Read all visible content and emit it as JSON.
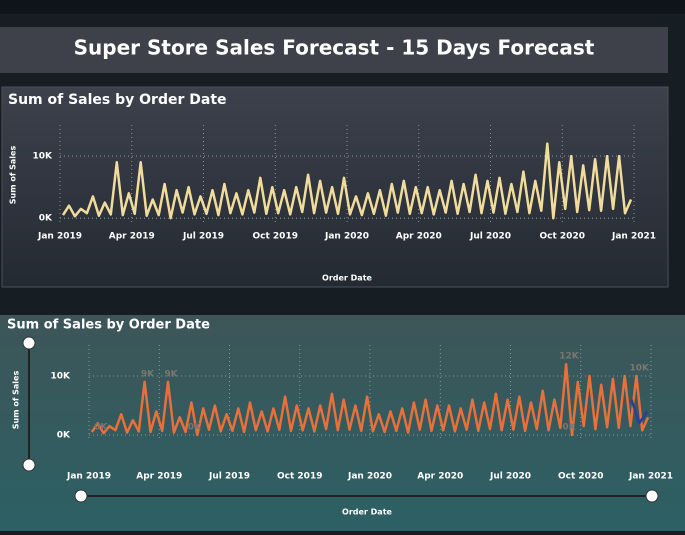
{
  "header": {
    "title": "Super Store Sales Forecast - 15 Days Forecast"
  },
  "chart_data": [
    {
      "type": "line",
      "title": "Sum of Sales by Order Date",
      "x_label": "Order Date",
      "y_label": "Sum of Sales",
      "x": [
        "Jan 2019",
        "Jan 2019",
        "Jan 2019",
        "Jan 2019",
        "Feb 2019",
        "Feb 2019",
        "Feb 2019",
        "Feb 2019",
        "Mar 2019",
        "Mar 2019",
        "Mar 2019",
        "Mar 2019",
        "Apr 2019",
        "Apr 2019",
        "Apr 2019",
        "Apr 2019",
        "May 2019",
        "May 2019",
        "May 2019",
        "May 2019",
        "Jun 2019",
        "Jun 2019",
        "Jun 2019",
        "Jun 2019",
        "Jul 2019",
        "Jul 2019",
        "Jul 2019",
        "Jul 2019",
        "Aug 2019",
        "Aug 2019",
        "Aug 2019",
        "Aug 2019",
        "Sep 2019",
        "Sep 2019",
        "Sep 2019",
        "Sep 2019",
        "Oct 2019",
        "Oct 2019",
        "Oct 2019",
        "Oct 2019",
        "Nov 2019",
        "Nov 2019",
        "Nov 2019",
        "Nov 2019",
        "Dec 2019",
        "Dec 2019",
        "Dec 2019",
        "Dec 2019",
        "Jan 2020",
        "Jan 2020",
        "Jan 2020",
        "Jan 2020",
        "Feb 2020",
        "Feb 2020",
        "Feb 2020",
        "Feb 2020",
        "Mar 2020",
        "Mar 2020",
        "Mar 2020",
        "Mar 2020",
        "Apr 2020",
        "Apr 2020",
        "Apr 2020",
        "Apr 2020",
        "May 2020",
        "May 2020",
        "May 2020",
        "May 2020",
        "Jun 2020",
        "Jun 2020",
        "Jun 2020",
        "Jun 2020",
        "Jul 2020",
        "Jul 2020",
        "Jul 2020",
        "Jul 2020",
        "Aug 2020",
        "Aug 2020",
        "Aug 2020",
        "Aug 2020",
        "Sep 2020",
        "Sep 2020",
        "Sep 2020",
        "Sep 2020",
        "Oct 2020",
        "Oct 2020",
        "Oct 2020",
        "Oct 2020",
        "Nov 2020",
        "Nov 2020",
        "Nov 2020",
        "Nov 2020",
        "Dec 2020",
        "Dec 2020",
        "Dec 2020",
        "Dec 2020"
      ],
      "series": [
        {
          "color": "#f2dc9b",
          "values": [
            500,
            2000,
            300,
            1500,
            800,
            3500,
            400,
            2500,
            600,
            9000,
            500,
            4000,
            700,
            9000,
            400,
            3000,
            500,
            5500,
            0,
            4500,
            900,
            5000,
            600,
            3500,
            700,
            4500,
            500,
            5500,
            800,
            4000,
            600,
            4500,
            900,
            6500,
            700,
            5000,
            800,
            4500,
            600,
            5000,
            1000,
            7000,
            800,
            6000,
            900,
            5000,
            700,
            6500,
            600,
            3500,
            500,
            4000,
            700,
            4500,
            400,
            5500,
            900,
            6000,
            700,
            5000,
            800,
            5000,
            600,
            4500,
            900,
            6000,
            700,
            5500,
            1000,
            7000,
            800,
            6000,
            900,
            6500,
            700,
            5500,
            1000,
            7500,
            800,
            6000,
            1200,
            12000,
            0,
            9000,
            1500,
            10000,
            1000,
            8500,
            1300,
            9500,
            1200,
            10000,
            1500,
            10000,
            800,
            3000
          ]
        }
      ],
      "xticks": [
        "Jan 2019",
        "Apr 2019",
        "Jul 2019",
        "Oct 2019",
        "Jan 2020",
        "Apr 2020",
        "Jul 2020",
        "Oct 2020",
        "Jan 2021"
      ],
      "ylim": [
        -1100,
        15000
      ],
      "yticks": [
        {
          "value": 0,
          "label": "0K"
        },
        {
          "value": 10000,
          "label": "10K"
        }
      ],
      "grid": true
    },
    {
      "type": "line",
      "title": "Sum of Sales by Order Date",
      "x_label": "Order Date",
      "y_label": "Sum of Sales",
      "x": [
        "Jan 2019",
        "Jan 2019",
        "Jan 2019",
        "Jan 2019",
        "Feb 2019",
        "Feb 2019",
        "Feb 2019",
        "Feb 2019",
        "Mar 2019",
        "Mar 2019",
        "Mar 2019",
        "Mar 2019",
        "Apr 2019",
        "Apr 2019",
        "Apr 2019",
        "Apr 2019",
        "May 2019",
        "May 2019",
        "May 2019",
        "May 2019",
        "Jun 2019",
        "Jun 2019",
        "Jun 2019",
        "Jun 2019",
        "Jul 2019",
        "Jul 2019",
        "Jul 2019",
        "Jul 2019",
        "Aug 2019",
        "Aug 2019",
        "Aug 2019",
        "Aug 2019",
        "Sep 2019",
        "Sep 2019",
        "Sep 2019",
        "Sep 2019",
        "Oct 2019",
        "Oct 2019",
        "Oct 2019",
        "Oct 2019",
        "Nov 2019",
        "Nov 2019",
        "Nov 2019",
        "Nov 2019",
        "Dec 2019",
        "Dec 2019",
        "Dec 2019",
        "Dec 2019",
        "Jan 2020",
        "Jan 2020",
        "Jan 2020",
        "Jan 2020",
        "Feb 2020",
        "Feb 2020",
        "Feb 2020",
        "Feb 2020",
        "Mar 2020",
        "Mar 2020",
        "Mar 2020",
        "Mar 2020",
        "Apr 2020",
        "Apr 2020",
        "Apr 2020",
        "Apr 2020",
        "May 2020",
        "May 2020",
        "May 2020",
        "May 2020",
        "Jun 2020",
        "Jun 2020",
        "Jun 2020",
        "Jun 2020",
        "Jul 2020",
        "Jul 2020",
        "Jul 2020",
        "Jul 2020",
        "Aug 2020",
        "Aug 2020",
        "Aug 2020",
        "Aug 2020",
        "Sep 2020",
        "Sep 2020",
        "Sep 2020",
        "Sep 2020",
        "Oct 2020",
        "Oct 2020",
        "Oct 2020",
        "Oct 2020",
        "Nov 2020",
        "Nov 2020",
        "Nov 2020",
        "Nov 2020",
        "Dec 2020",
        "Dec 2020",
        "Dec 2020",
        "Dec 2020"
      ],
      "series": [
        {
          "color": "#e8703a",
          "values": [
            500,
            2000,
            300,
            1500,
            800,
            3500,
            400,
            2500,
            600,
            9000,
            500,
            4000,
            700,
            9000,
            400,
            3000,
            500,
            5500,
            0,
            4500,
            900,
            5000,
            600,
            3500,
            700,
            4500,
            500,
            5500,
            800,
            4000,
            600,
            4500,
            900,
            6500,
            700,
            5000,
            800,
            4500,
            600,
            5000,
            1000,
            7000,
            800,
            6000,
            900,
            5000,
            700,
            6500,
            600,
            3500,
            500,
            4000,
            700,
            4500,
            400,
            5500,
            900,
            6000,
            700,
            5000,
            800,
            5000,
            600,
            4500,
            900,
            6000,
            700,
            5500,
            1000,
            7000,
            800,
            6000,
            900,
            6500,
            700,
            5500,
            1000,
            7500,
            800,
            6000,
            1200,
            12000,
            0,
            9000,
            1500,
            10000,
            1000,
            8500,
            1300,
            9500,
            1200,
            10000,
            1500,
            10000,
            800,
            3000
          ]
        }
      ],
      "forecast": {
        "color": "#2e3d9a",
        "x": [
          "Dec 2020",
          "Dec 2020",
          "Dec 2020"
        ],
        "values": [
          6000,
          2000,
          4000
        ]
      },
      "annotations": [
        {
          "x": "Jan 2019",
          "value": 0,
          "label": "0K"
        },
        {
          "x": "Mar 2019",
          "value": 9000,
          "label": "9K"
        },
        {
          "x": "Apr 2019",
          "value": 9000,
          "label": "9K"
        },
        {
          "x": "May 2019",
          "value": 0,
          "label": "0K"
        },
        {
          "x": "Sep 2020",
          "value": 12000,
          "label": "12K"
        },
        {
          "x": "Sep 2020",
          "value": 0,
          "label": "0K"
        },
        {
          "x": "Dec 2020",
          "value": 10000,
          "label": "10K"
        }
      ],
      "xticks": [
        "Jan 2019",
        "Apr 2019",
        "Jul 2019",
        "Oct 2019",
        "Jan 2020",
        "Apr 2020",
        "Jul 2020",
        "Oct 2020",
        "Jan 2021"
      ],
      "ylim": [
        -850,
        15250
      ],
      "yticks": [
        {
          "value": 0,
          "label": "0K"
        },
        {
          "value": 10000,
          "label": "10K"
        }
      ],
      "grid": true
    }
  ]
}
